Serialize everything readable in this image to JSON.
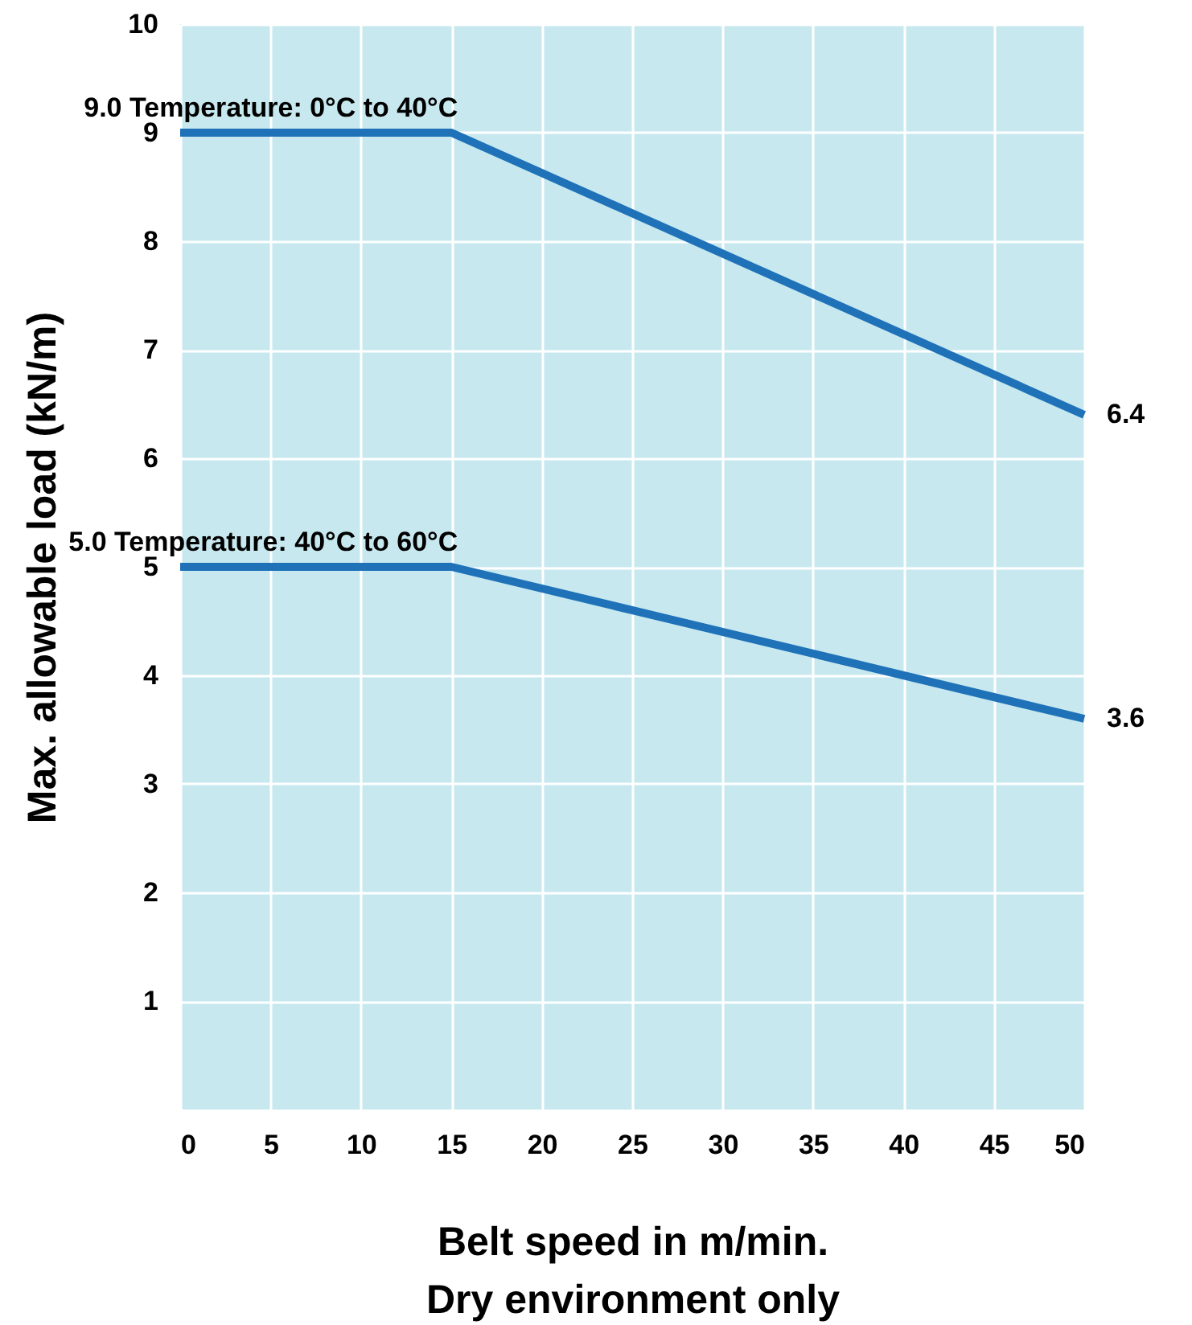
{
  "chart_data": {
    "type": "line",
    "xlabel": "Belt speed in m/min.\nDry environment only",
    "ylabel": "Max. allowable load (kN/m)",
    "x": [
      0,
      15,
      50
    ],
    "series": [
      {
        "name": "Temperature: 0°C to 40°C",
        "color": "#1f72b8",
        "values": [
          9,
          9,
          6.4
        ],
        "value_labels": [
          "9.0",
          null,
          "6.4"
        ]
      },
      {
        "name": "Temperature: 40°C to 60°C",
        "color": "#1f72b8",
        "values": [
          5,
          5,
          3.6
        ],
        "value_labels": [
          "5.0",
          null,
          "3.6"
        ]
      }
    ],
    "xlim": [
      0,
      50
    ],
    "xticks": [
      0,
      5,
      10,
      15,
      20,
      25,
      30,
      35,
      40,
      45,
      50
    ],
    "ylim": [
      0,
      10
    ],
    "yticks": [
      1,
      2,
      3,
      4,
      5,
      6,
      7,
      8,
      9,
      10
    ],
    "grid": true,
    "marker": "none",
    "line_style": "solid"
  }
}
